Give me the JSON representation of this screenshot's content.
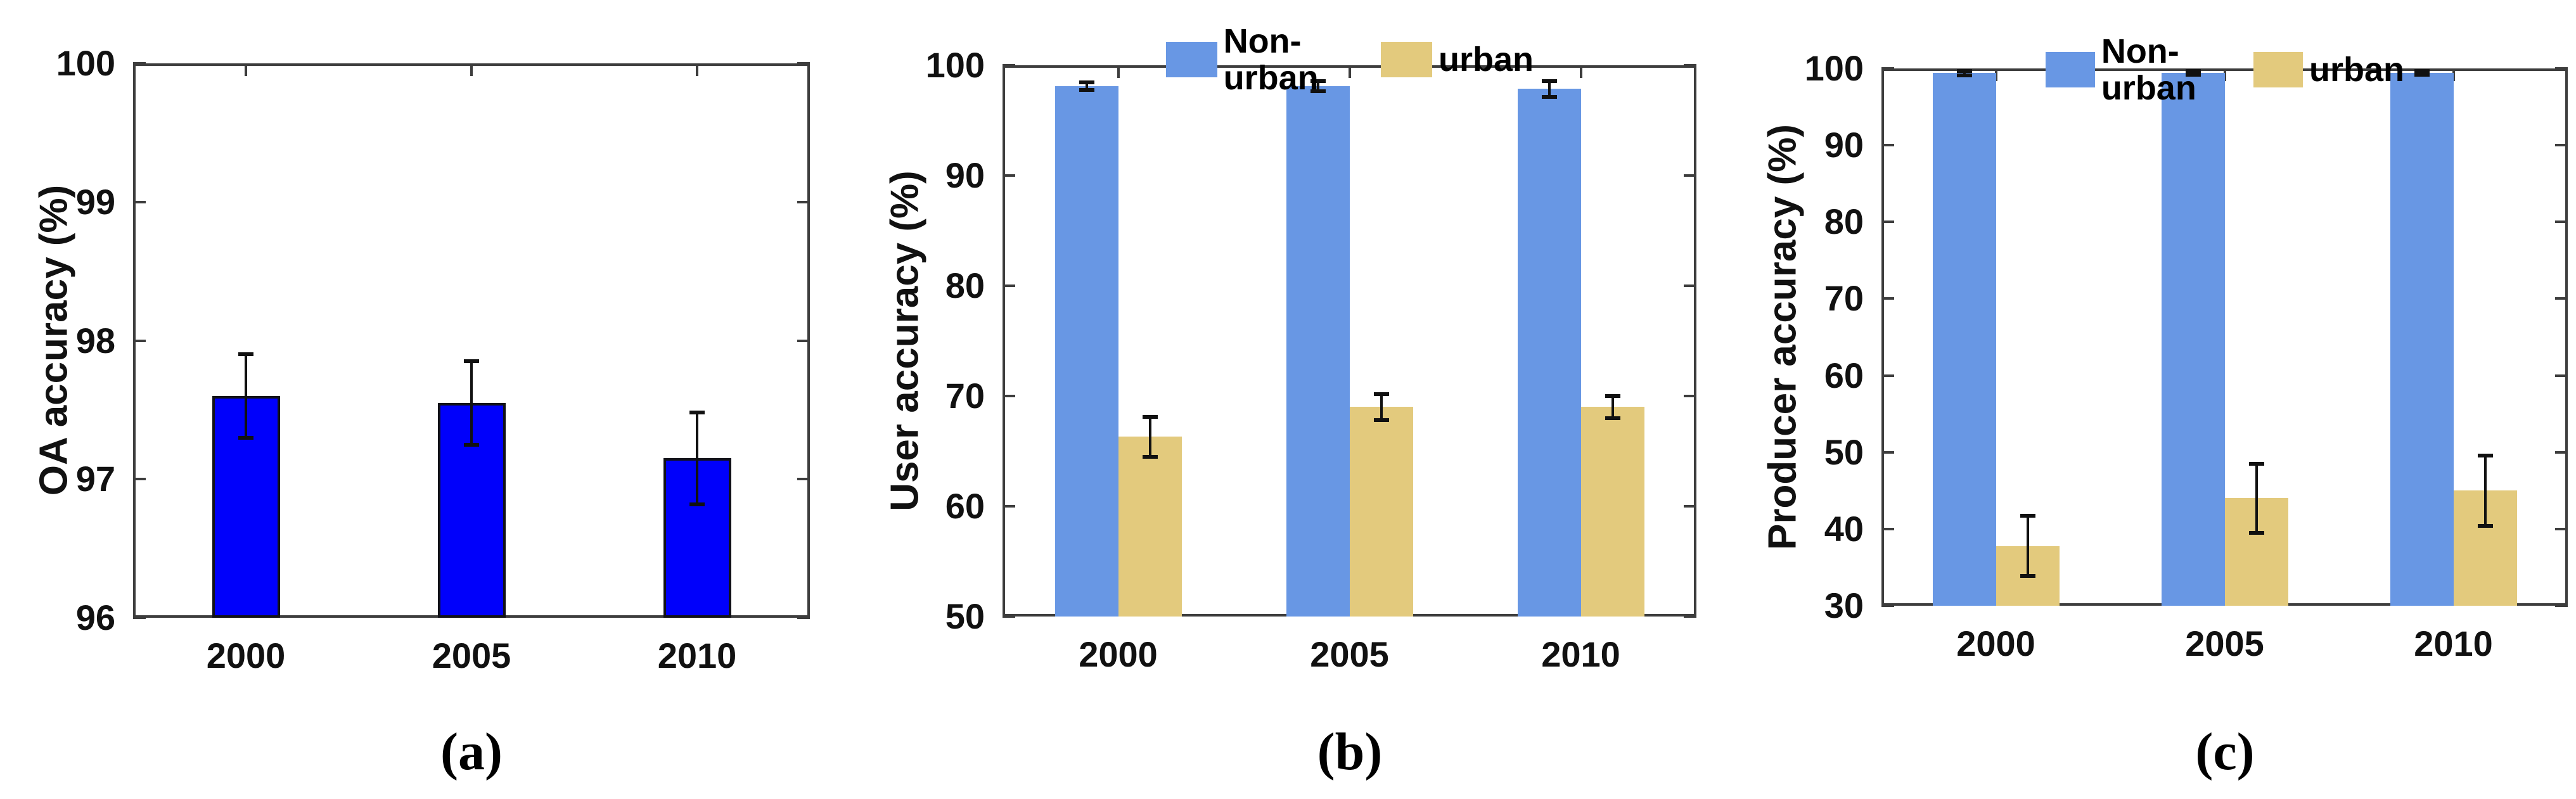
{
  "styles": {
    "error_color": "#111111",
    "spine_color": "#3d3d3d",
    "text_color": "#111111",
    "oa_bar_color": "#0000fb",
    "nonurban_color": "#6897e4",
    "urban_color": "#e3ca7d"
  },
  "chart_data": [
    {
      "type": "bar",
      "caption": "(a)",
      "ylabel": "OA accuracy (%)",
      "xlabel": "",
      "categories": [
        "2000",
        "2005",
        "2010"
      ],
      "ylim": [
        96,
        100
      ],
      "yticks": [
        96,
        97,
        98,
        99,
        100
      ],
      "grid": false,
      "legend_visible": false,
      "series": [
        {
          "name": "OA accuracy",
          "color": "#0000fb",
          "edge": "#121218",
          "values": [
            97.6,
            97.55,
            97.15
          ],
          "errors": [
            0.3,
            0.3,
            0.33
          ]
        }
      ]
    },
    {
      "type": "bar",
      "caption": "(b)",
      "ylabel": "User accuracy (%)",
      "xlabel": "",
      "categories": [
        "2000",
        "2005",
        "2010"
      ],
      "ylim": [
        50,
        100
      ],
      "yticks": [
        50,
        60,
        70,
        80,
        90,
        100
      ],
      "grid": false,
      "legend_visible": true,
      "legend_position": "top-center",
      "series": [
        {
          "name": "Non-urban",
          "color": "#6897e4",
          "values": [
            98.1,
            98.1,
            97.85
          ],
          "errors": [
            0.35,
            0.45,
            0.7
          ]
        },
        {
          "name": "urban",
          "color": "#e3ca7d",
          "values": [
            66.3,
            69.0,
            69.0
          ],
          "errors": [
            1.8,
            1.2,
            1.0
          ]
        }
      ]
    },
    {
      "type": "bar",
      "caption": "(c)",
      "ylabel": "Producer accuracy (%)",
      "xlabel": "",
      "categories": [
        "2000",
        "2005",
        "2010"
      ],
      "ylim": [
        30,
        100
      ],
      "yticks": [
        30,
        40,
        50,
        60,
        70,
        80,
        90,
        100
      ],
      "grid": false,
      "legend_visible": true,
      "legend_position": "top-center",
      "series": [
        {
          "name": "Non-urban",
          "color": "#6897e4",
          "values": [
            99.4,
            99.4,
            99.4
          ],
          "errors": [
            0.3,
            0.25,
            0.25
          ]
        },
        {
          "name": "urban",
          "color": "#e3ca7d",
          "values": [
            37.8,
            44.0,
            45.0
          ],
          "errors": [
            3.9,
            4.5,
            4.6
          ]
        }
      ]
    }
  ]
}
